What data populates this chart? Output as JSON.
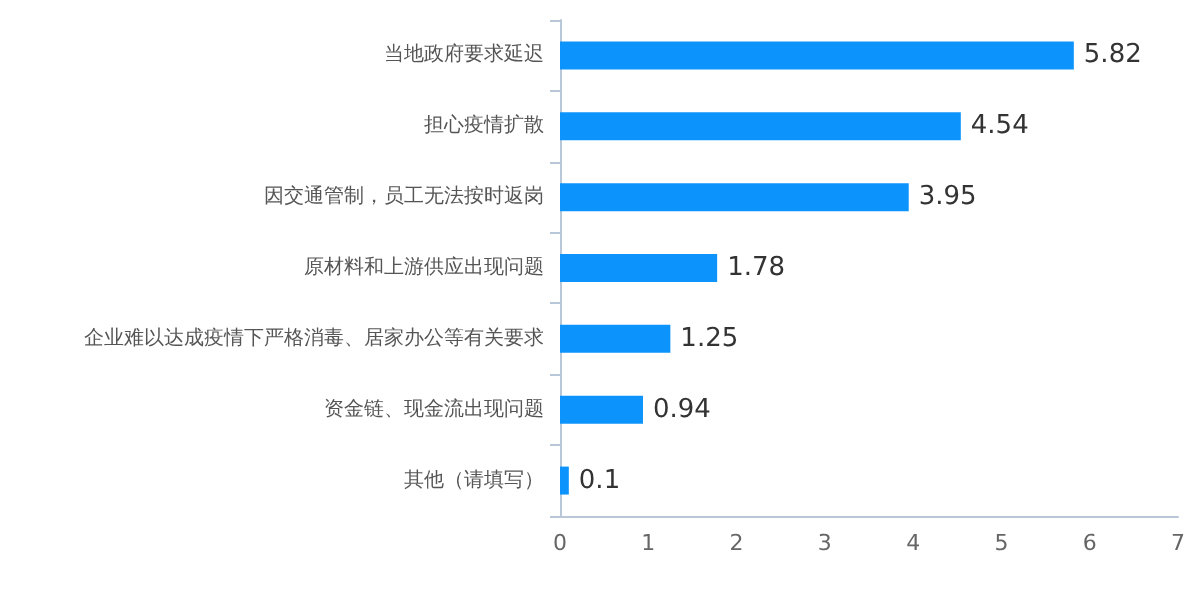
{
  "chart_data": {
    "type": "bar",
    "orientation": "horizontal",
    "categories": [
      "当地政府要求延迟",
      "担心疫情扩散",
      "因交通管制，员工无法按时返岗",
      "原材料和上游供应出现问题",
      "企业难以达成疫情下严格消毒、居家办公等有关要求",
      "资金链、现金流出现问题",
      "其他（请填写）"
    ],
    "values": [
      5.82,
      4.54,
      3.95,
      1.78,
      1.25,
      0.94,
      0.1
    ],
    "color": "#0d94fc",
    "data_labels": true,
    "xlim": [
      0,
      7
    ],
    "xticks": [
      0,
      1,
      2,
      3,
      4,
      5,
      6,
      7
    ],
    "grid": false
  }
}
